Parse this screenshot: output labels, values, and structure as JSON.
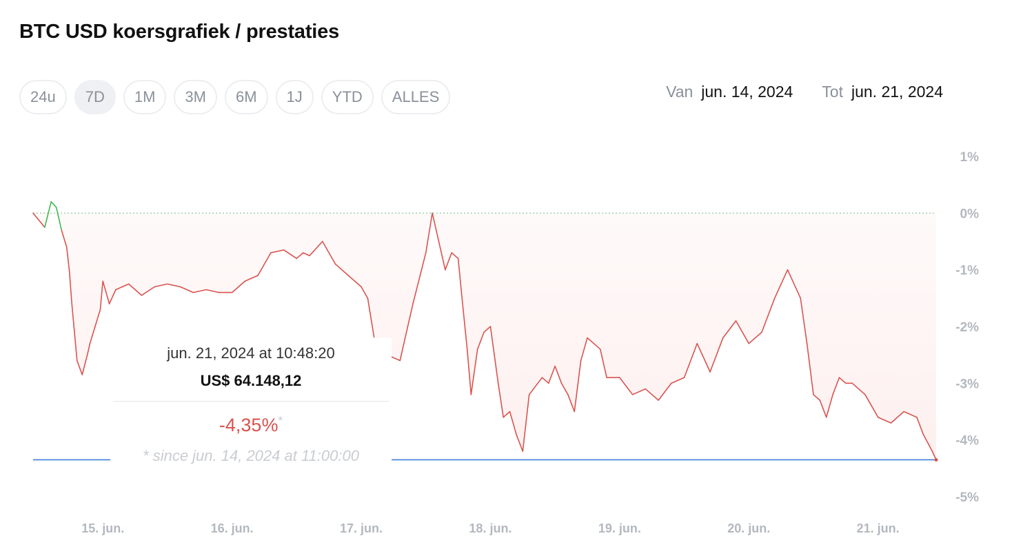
{
  "title": "BTC USD koersgrafiek / prestaties",
  "ranges": [
    "24u",
    "7D",
    "1M",
    "3M",
    "6M",
    "1J",
    "YTD",
    "ALLES"
  ],
  "active_range": "7D",
  "date_range": {
    "from_label": "Van",
    "from": "jun. 14, 2024",
    "to_label": "Tot",
    "to": "jun. 21, 2024"
  },
  "tooltip": {
    "date": "jun. 21, 2024 at 10:48:20",
    "price": "US$ 64.148,12",
    "change": "-4,35%",
    "asterisk": "*",
    "since": "* since jun. 14, 2024 at 11:00:00"
  },
  "colors": {
    "negative": "#d9534f",
    "positive": "#3fb950",
    "baseline": "#3b7dd8",
    "fill": "#fdf0ef"
  },
  "chart_data": {
    "type": "line",
    "x_unit": "day (June 2024)",
    "y_unit": "percent change",
    "xlim": [
      14.46,
      21.45
    ],
    "ylim": [
      -5,
      1
    ],
    "y_ticks": [
      1,
      0,
      -1,
      -2,
      -3,
      -4,
      -5
    ],
    "y_tick_labels": [
      "1%",
      "0%",
      "-1%",
      "-2%",
      "-3%",
      "-4%",
      "-5%"
    ],
    "x_ticks": [
      15,
      16,
      17,
      18,
      19,
      20,
      21
    ],
    "x_tick_labels": [
      "15. jun.",
      "16. jun.",
      "17. jun.",
      "18. jun.",
      "19. jun.",
      "20. jun.",
      "21. jun."
    ],
    "reference_lines": [
      {
        "y": 0,
        "style": "dotted"
      },
      {
        "y": -4.35,
        "style": "solid"
      }
    ],
    "x": [
      14.46,
      14.55,
      14.6,
      14.64,
      14.68,
      14.72,
      14.74,
      14.76,
      14.8,
      14.84,
      14.88,
      14.9,
      14.94,
      14.98,
      15.0,
      15.05,
      15.1,
      15.15,
      15.2,
      15.3,
      15.4,
      15.5,
      15.6,
      15.7,
      15.8,
      15.9,
      16.0,
      16.1,
      16.2,
      16.3,
      16.4,
      16.5,
      16.55,
      16.6,
      16.7,
      16.8,
      16.9,
      17.0,
      17.05,
      17.1,
      17.2,
      17.3,
      17.4,
      17.5,
      17.55,
      17.6,
      17.65,
      17.7,
      17.75,
      17.78,
      17.82,
      17.85,
      17.9,
      17.95,
      18.0,
      18.03,
      18.06,
      18.1,
      18.15,
      18.2,
      18.25,
      18.3,
      18.4,
      18.45,
      18.5,
      18.55,
      18.6,
      18.65,
      18.7,
      18.75,
      18.8,
      18.85,
      18.9,
      18.95,
      19.0,
      19.1,
      19.2,
      19.3,
      19.4,
      19.5,
      19.6,
      19.7,
      19.8,
      19.9,
      20.0,
      20.1,
      20.2,
      20.3,
      20.4,
      20.45,
      20.5,
      20.55,
      20.6,
      20.65,
      20.7,
      20.75,
      20.8,
      20.9,
      21.0,
      21.1,
      21.2,
      21.3,
      21.35,
      21.42,
      21.45
    ],
    "y": [
      0.0,
      -0.25,
      0.2,
      0.1,
      -0.3,
      -0.6,
      -1.0,
      -1.6,
      -2.6,
      -2.85,
      -2.5,
      -2.3,
      -2.0,
      -1.7,
      -1.2,
      -1.6,
      -1.35,
      -1.3,
      -1.25,
      -1.45,
      -1.3,
      -1.25,
      -1.3,
      -1.4,
      -1.35,
      -1.4,
      -1.4,
      -1.2,
      -1.1,
      -0.7,
      -0.65,
      -0.8,
      -0.7,
      -0.75,
      -0.5,
      -0.9,
      -1.1,
      -1.3,
      -1.5,
      -2.2,
      -2.5,
      -2.6,
      -1.6,
      -0.7,
      0.0,
      -0.5,
      -1.0,
      -0.7,
      -0.8,
      -1.5,
      -2.4,
      -3.2,
      -2.4,
      -2.1,
      -2.0,
      -2.5,
      -3.0,
      -3.6,
      -3.5,
      -3.9,
      -4.2,
      -3.2,
      -2.9,
      -3.0,
      -2.7,
      -3.0,
      -3.2,
      -3.5,
      -2.6,
      -2.2,
      -2.3,
      -2.4,
      -2.9,
      -2.9,
      -2.9,
      -3.2,
      -3.1,
      -3.3,
      -3.0,
      -2.9,
      -2.3,
      -2.8,
      -2.2,
      -1.9,
      -2.3,
      -2.1,
      -1.5,
      -1.0,
      -1.5,
      -2.3,
      -3.2,
      -3.3,
      -3.6,
      -3.2,
      -2.9,
      -3.0,
      -3.0,
      -3.2,
      -3.6,
      -3.7,
      -3.5,
      -3.6,
      -3.9,
      -4.2,
      -4.35
    ]
  }
}
